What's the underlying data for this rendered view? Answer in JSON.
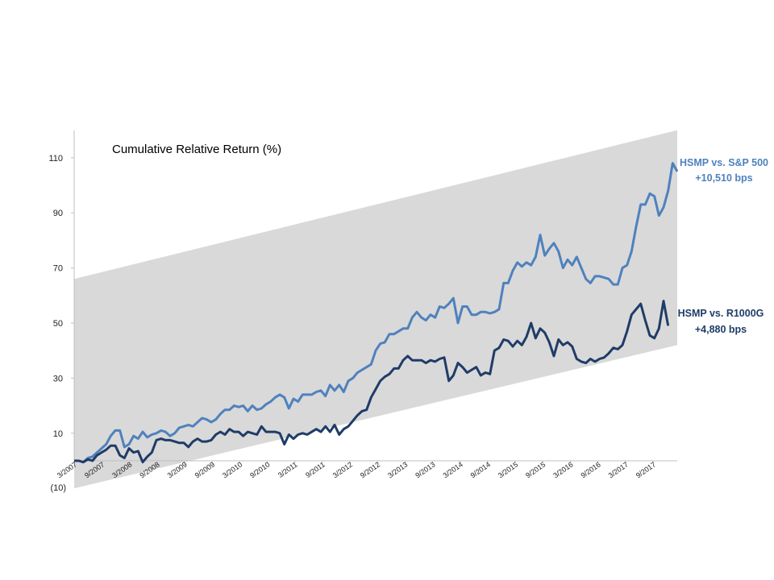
{
  "chart_data": {
    "type": "line",
    "title": "Cumulative Relative Return (%)",
    "xlabel": "",
    "ylabel": "",
    "ylim": [
      -10,
      120
    ],
    "y_ticks": [
      10,
      30,
      50,
      70,
      90,
      110
    ],
    "y_tick_labels": [
      "10",
      "30",
      "50",
      "70",
      "90",
      "110"
    ],
    "y_extra_label": "(10)",
    "x_tick_labels": [
      "3/2007",
      "9/2007",
      "3/2008",
      "9/2008",
      "3/2009",
      "9/2009",
      "3/2010",
      "9/2010",
      "3/2011",
      "9/2011",
      "3/2012",
      "9/2012",
      "3/2013",
      "9/2013",
      "3/2014",
      "9/2014",
      "3/2015",
      "9/2015",
      "3/2016",
      "9/2016",
      "3/2017",
      "9/2017"
    ],
    "x_start": "3/2007",
    "x_end": "2/2018",
    "grid": false,
    "band": {
      "lower_start": -10,
      "lower_end": 42,
      "upper_start": 66,
      "upper_end": 120,
      "color": "#d9d9d9"
    },
    "series": [
      {
        "name": "HSMP vs. S&P 500",
        "color": "#4f81bd",
        "values": [
          0,
          0,
          -0.5,
          1,
          1.5,
          3,
          4.5,
          6,
          9,
          11,
          11,
          5,
          6,
          9,
          8,
          10.5,
          8.5,
          9.5,
          10,
          11,
          10.5,
          9,
          10,
          12,
          12.5,
          13,
          12.5,
          14,
          15.5,
          15,
          14,
          15,
          17,
          18.5,
          18.5,
          20,
          19.5,
          20,
          18,
          20,
          18.5,
          19,
          20.5,
          21.5,
          23,
          24,
          23,
          19,
          22.5,
          21.5,
          24,
          24,
          24,
          25,
          25.5,
          23.5,
          27.5,
          25.5,
          27.5,
          25,
          29,
          30,
          32,
          33,
          34,
          35,
          40,
          42.5,
          43,
          46,
          46,
          47,
          48,
          48,
          52,
          54,
          52,
          51,
          53,
          52,
          56,
          55.5,
          57,
          59,
          50,
          56,
          56,
          53,
          53,
          54,
          54,
          53.5,
          54,
          55,
          64.5,
          64.5,
          69,
          72,
          70.5,
          72,
          71,
          74,
          82,
          74.5,
          77,
          79,
          76,
          70,
          73,
          71,
          74,
          70,
          66,
          64.5,
          67,
          67,
          66.5,
          66,
          64,
          64,
          70,
          71,
          76,
          85,
          93,
          93,
          97,
          96,
          89,
          92,
          98,
          108,
          105
        ]
      },
      {
        "name": "HSMP vs. R1000G",
        "color": "#1f3c68",
        "values": [
          0,
          0,
          -0.5,
          0.5,
          0,
          2,
          3,
          4,
          5.5,
          5.5,
          2,
          1,
          4.5,
          3,
          3.5,
          -0.5,
          1.5,
          3,
          7.5,
          8,
          7.5,
          7.5,
          7,
          6.5,
          6.5,
          5,
          7,
          8,
          7,
          7,
          7.5,
          9.5,
          10.5,
          9.5,
          11.5,
          10.5,
          10.5,
          9,
          10.5,
          10,
          9.5,
          12.5,
          10.5,
          10.5,
          10.5,
          10,
          6,
          9.5,
          8,
          9.5,
          10,
          9.5,
          10.5,
          11.5,
          10.5,
          12.5,
          10.5,
          13,
          9.5,
          11.5,
          12.5,
          14.5,
          16.5,
          18,
          18.5,
          23,
          26,
          29,
          30.5,
          31.5,
          33.5,
          33.5,
          36.5,
          38,
          36.5,
          36.5,
          36.5,
          35.5,
          36.5,
          36,
          37,
          37.5,
          29,
          31,
          35.5,
          34,
          32,
          33,
          34,
          31,
          32,
          31.5,
          40,
          41,
          44,
          43.5,
          41.5,
          43.5,
          42,
          45,
          50,
          44.5,
          48,
          46.5,
          43,
          38,
          44,
          42,
          43,
          41.5,
          37,
          36,
          35.5,
          37,
          36,
          37,
          37.5,
          39,
          41,
          40.5,
          42,
          47,
          53,
          55,
          57,
          51,
          45.5,
          44.5,
          48,
          58,
          49
        ]
      }
    ],
    "annotations": [
      {
        "line1": "HSMP vs. S&P 500",
        "line2": "+10,510 bps",
        "color": "#4f81bd"
      },
      {
        "line1": "HSMP vs. R1000G",
        "line2": "+4,880 bps",
        "color": "#1f3c68"
      }
    ]
  }
}
